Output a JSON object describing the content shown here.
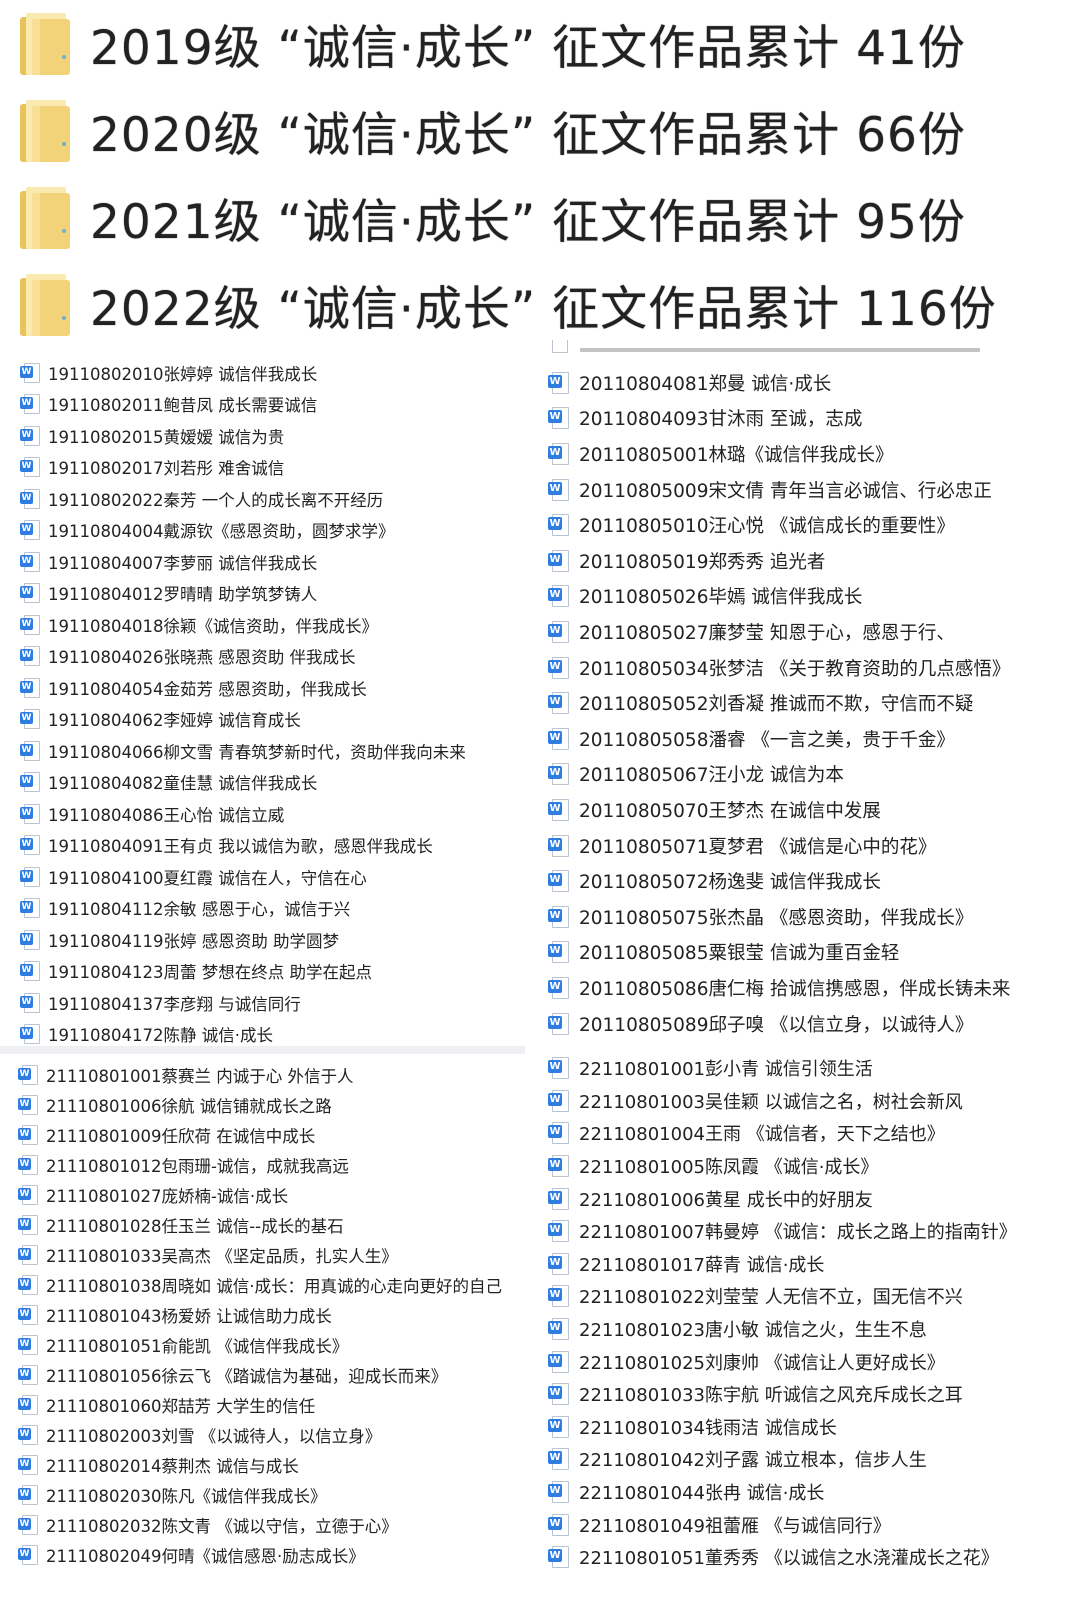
{
  "folders": [
    {
      "label": "2019级 “诚信·成长” 征文作品累计 41份",
      "icon": "folder-icon"
    },
    {
      "label": "2020级 “诚信·成长” 征文作品累计 66份",
      "icon": "folder-icon"
    },
    {
      "label": "2021级 “诚信·成长” 征文作品累计 95份",
      "icon": "folder-icon"
    },
    {
      "label": "2022级 “诚信·成长” 征文作品累计 116份",
      "icon": "folder-icon"
    }
  ],
  "colors": {
    "folder": "#f2d37a",
    "doc_badge": "#2f7de1"
  },
  "lists": {
    "grade2019": [
      "19110802010张婷婷 诚信伴我成长",
      "19110802011鲍昔凤 成长需要诚信",
      "19110802015黄嫒嫒 诚信为贵",
      "19110802017刘若彤 难舍诚信",
      "19110802022秦芳 一个人的成长离不开经历",
      "19110804004戴源钦《感恩资助，圆梦求学》",
      "19110804007李萝丽 诚信伴我成长",
      "19110804012罗晴晴 助学筑梦铸人",
      "19110804018徐颖《诚信资助，伴我成长》",
      "19110804026张晓燕 感恩资助 伴我成长",
      "19110804054金茹芳 感恩资助，伴我成长",
      "19110804062李娅婷 诚信育成长",
      "19110804066柳文雪  青春筑梦新时代，资助伴我向未来",
      "19110804082童佳慧 诚信伴我成长",
      "19110804086王心怡 诚信立威",
      "19110804091王有贞 我以诚信为歌，感恩伴我成长",
      "19110804100夏红霞 诚信在人，守信在心",
      "19110804112余敏 感恩于心，诚信于兴",
      "19110804119张婷 感恩资助 助学圆梦",
      "19110804123周蕾 梦想在终点 助学在起点",
      "19110804137李彦翔 与诚信同行",
      "19110804172陈静 诚信·成长"
    ],
    "grade2020": [
      "20110804081郑曼 诚信·成长",
      "20110804093甘沐雨 至诚，志成",
      "20110805001林璐《诚信伴我成长》",
      "20110805009宋文倩 青年当言必诚信、行必忠正",
      "20110805010汪心悦 《诚信成长的重要性》",
      "20110805019郑秀秀 追光者",
      "20110805026毕嫣 诚信伴我成长",
      "20110805027廉梦莹 知恩于心，感恩于行、",
      "20110805034张梦洁 《关于教育资助的几点感悟》",
      "20110805052刘香凝 推诚而不欺，守信而不疑",
      "20110805058潘睿 《一言之美，贵于千金》",
      "20110805067汪小龙 诚信为本",
      "20110805070王梦杰 在诚信中发展",
      "20110805071夏梦君 《诚信是心中的花》",
      "20110805072杨逸斐 诚信伴我成长",
      "20110805075张杰晶 《感恩资助，伴我成长》",
      "20110805085粟银莹 信诚为重百金轻",
      "20110805086唐仁梅 拾诚信携感恩，伴成长铸未来",
      "20110805089邱子嗅 《以信立身，以诚待人》"
    ],
    "grade2021": [
      "21110801001蔡赛兰 内诚于心 外信于人",
      "21110801006徐航 诚信铺就成长之路",
      "21110801009任欣荷 在诚信中成长",
      "21110801012包雨珊-诚信，成就我高远",
      "21110801027庞娇楠-诚信·成长",
      "21110801028任玉兰 诚信--成长的基石",
      "21110801033吴高杰 《坚定品质，扎实人生》",
      "21110801038周晓如 诚信·成长：用真诚的心走向更好的自己",
      "21110801043杨爱娇 让诚信助力成长",
      "21110801051俞能凯 《诚信伴我成长》",
      "21110801056徐云飞 《踏诚信为基础，迎成长而来》",
      "21110801060郑喆芳 大学生的信任",
      "21110802003刘雪 《以诚待人，以信立身》",
      "21110802014蔡荆杰 诚信与成长",
      "21110802030陈凡《诚信伴我成长》",
      "21110802032陈文青 《诚以守信，立德于心》",
      "21110802049何晴《诚信感恩·励志成长》"
    ],
    "grade2022": [
      "22110801001彭小青 诚信引领生活",
      "22110801003吴佳颖 以诚信之名，树社会新风",
      "22110801004王雨 《诚信者，天下之结也》",
      "22110801005陈凤霞 《诚信·成长》",
      "22110801006黄星 成长中的好朋友",
      "22110801007韩曼婷 《诚信：成长之路上的指南针》",
      "22110801017薛青 诚信·成长",
      "22110801022刘莹莹 人无信不立，国无信不兴",
      "22110801023唐小敏 诚信之火，生生不息",
      "22110801025刘康帅 《诚信让人更好成长》",
      "22110801033陈宇航 听诚信之风充斥成长之耳",
      "22110801034钱雨洁 诚信成长",
      "22110801042刘子露 诚立根本，信步人生",
      "22110801044张冉 诚信·成长",
      "22110801049祖蕾雁 《与诚信同行》",
      "22110801051董秀秀 《以诚信之水浇灌成长之花》"
    ]
  },
  "doc_icon_glyph": "W"
}
